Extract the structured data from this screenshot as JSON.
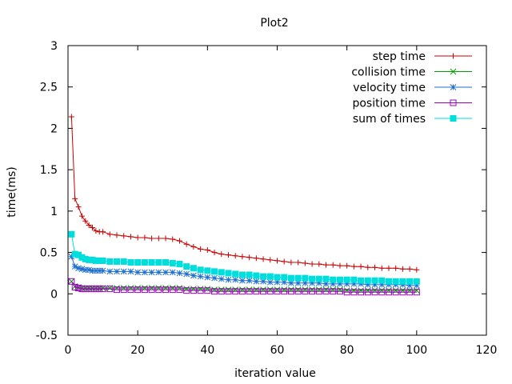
{
  "chart_data": {
    "type": "line",
    "title": "Plot2",
    "xlabel": "iteration value",
    "ylabel": "time(ms)",
    "xlim": [
      0,
      120
    ],
    "ylim": [
      -0.5,
      3
    ],
    "x_ticks": [
      "0",
      "20",
      "40",
      "60",
      "80",
      "100",
      "120"
    ],
    "y_ticks": [
      "-0.5",
      "0",
      "0.5",
      "1",
      "1.5",
      "2",
      "2.5",
      "3"
    ],
    "x_tick_values": [
      0,
      20,
      40,
      60,
      80,
      100,
      120
    ],
    "y_tick_values": [
      -0.5,
      0,
      0.5,
      1,
      1.5,
      2,
      2.5,
      3
    ],
    "grid": false,
    "legend_position": "top-right",
    "x": [
      1,
      2,
      3,
      4,
      5,
      6,
      7,
      8,
      9,
      10,
      12,
      14,
      16,
      18,
      20,
      22,
      24,
      26,
      28,
      30,
      32,
      34,
      36,
      38,
      40,
      42,
      44,
      46,
      48,
      50,
      52,
      54,
      56,
      58,
      60,
      62,
      64,
      66,
      68,
      70,
      72,
      74,
      76,
      78,
      80,
      82,
      84,
      86,
      88,
      90,
      92,
      94,
      96,
      98,
      100
    ],
    "series": [
      {
        "name": "step time",
        "color": "#cc0000",
        "marker": "plus",
        "values": [
          2.14,
          1.15,
          1.05,
          0.94,
          0.88,
          0.83,
          0.8,
          0.76,
          0.75,
          0.75,
          0.72,
          0.71,
          0.7,
          0.69,
          0.68,
          0.68,
          0.67,
          0.67,
          0.67,
          0.66,
          0.64,
          0.6,
          0.57,
          0.54,
          0.53,
          0.5,
          0.48,
          0.47,
          0.46,
          0.45,
          0.44,
          0.43,
          0.42,
          0.41,
          0.4,
          0.39,
          0.38,
          0.38,
          0.37,
          0.36,
          0.36,
          0.35,
          0.35,
          0.34,
          0.34,
          0.33,
          0.33,
          0.32,
          0.32,
          0.31,
          0.31,
          0.31,
          0.3,
          0.3,
          0.29
        ]
      },
      {
        "name": "collision time",
        "color": "#00a000",
        "marker": "x",
        "values": [
          0.15,
          0.09,
          0.08,
          0.07,
          0.07,
          0.07,
          0.07,
          0.07,
          0.07,
          0.07,
          0.07,
          0.07,
          0.07,
          0.07,
          0.07,
          0.07,
          0.07,
          0.07,
          0.07,
          0.07,
          0.07,
          0.06,
          0.06,
          0.06,
          0.06,
          0.05,
          0.05,
          0.05,
          0.05,
          0.05,
          0.05,
          0.05,
          0.05,
          0.05,
          0.05,
          0.05,
          0.05,
          0.05,
          0.05,
          0.05,
          0.05,
          0.05,
          0.05,
          0.05,
          0.04,
          0.04,
          0.04,
          0.04,
          0.04,
          0.04,
          0.04,
          0.04,
          0.04,
          0.04,
          0.04
        ]
      },
      {
        "name": "velocity time",
        "color": "#1e6fd0",
        "marker": "star",
        "values": [
          0.45,
          0.33,
          0.31,
          0.3,
          0.29,
          0.29,
          0.28,
          0.28,
          0.28,
          0.28,
          0.27,
          0.27,
          0.27,
          0.27,
          0.26,
          0.26,
          0.26,
          0.26,
          0.26,
          0.26,
          0.25,
          0.24,
          0.22,
          0.21,
          0.2,
          0.19,
          0.18,
          0.17,
          0.17,
          0.16,
          0.16,
          0.15,
          0.15,
          0.14,
          0.14,
          0.14,
          0.13,
          0.13,
          0.13,
          0.13,
          0.13,
          0.12,
          0.12,
          0.12,
          0.12,
          0.12,
          0.12,
          0.11,
          0.11,
          0.11,
          0.11,
          0.11,
          0.11,
          0.1,
          0.1
        ]
      },
      {
        "name": "position time",
        "color": "#a000c0",
        "marker": "square-open",
        "values": [
          0.15,
          0.08,
          0.07,
          0.06,
          0.06,
          0.06,
          0.06,
          0.06,
          0.06,
          0.06,
          0.06,
          0.05,
          0.05,
          0.05,
          0.05,
          0.05,
          0.05,
          0.05,
          0.05,
          0.05,
          0.05,
          0.04,
          0.04,
          0.04,
          0.04,
          0.03,
          0.03,
          0.03,
          0.03,
          0.03,
          0.03,
          0.03,
          0.03,
          0.03,
          0.03,
          0.03,
          0.03,
          0.03,
          0.03,
          0.03,
          0.03,
          0.03,
          0.03,
          0.03,
          0.02,
          0.02,
          0.02,
          0.02,
          0.02,
          0.02,
          0.02,
          0.02,
          0.02,
          0.02,
          0.02
        ]
      },
      {
        "name": "sum of times",
        "color": "#00dddd",
        "marker": "square-filled",
        "values": [
          0.72,
          0.48,
          0.47,
          0.44,
          0.42,
          0.41,
          0.41,
          0.4,
          0.4,
          0.4,
          0.39,
          0.39,
          0.39,
          0.38,
          0.38,
          0.38,
          0.38,
          0.38,
          0.38,
          0.37,
          0.36,
          0.33,
          0.31,
          0.29,
          0.28,
          0.27,
          0.26,
          0.25,
          0.24,
          0.23,
          0.23,
          0.22,
          0.21,
          0.21,
          0.2,
          0.2,
          0.19,
          0.19,
          0.19,
          0.18,
          0.18,
          0.18,
          0.17,
          0.17,
          0.17,
          0.17,
          0.16,
          0.16,
          0.16,
          0.16,
          0.15,
          0.15,
          0.15,
          0.15,
          0.15
        ]
      }
    ]
  }
}
